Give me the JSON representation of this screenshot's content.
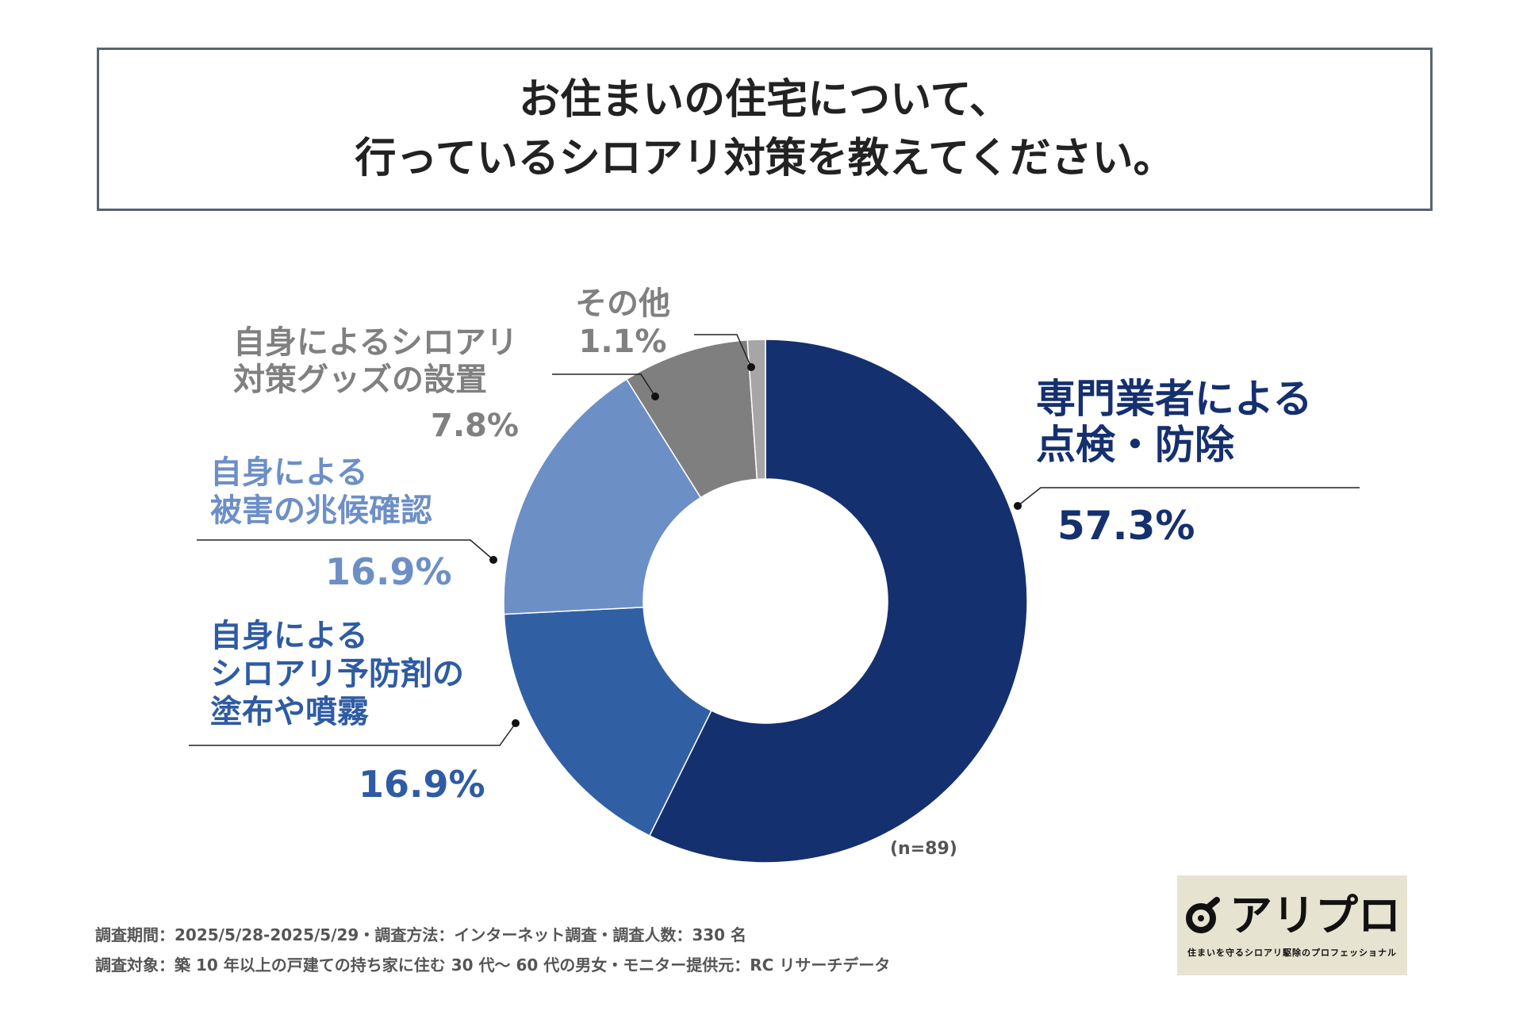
{
  "title": {
    "line1": "お住まいの住宅について、",
    "line2": "行っているシロアリ対策を教えてください。"
  },
  "chart_data": {
    "type": "pie",
    "variant": "donut",
    "sample_size": "(n=89)",
    "slices": [
      {
        "key": "professional",
        "label_lines": [
          "専門業者による",
          "点検・防除"
        ],
        "value": 57.3,
        "value_text": "57.3%",
        "color": "#15306f",
        "label_color": "#15306f"
      },
      {
        "key": "spray",
        "label_lines": [
          "自身による",
          "シロアリ予防剤の",
          "塗布や噴霧"
        ],
        "value": 16.9,
        "value_text": "16.9%",
        "color": "#305fa4",
        "label_color": "#2e5ba3"
      },
      {
        "key": "inspect",
        "label_lines": [
          "自身による",
          "被害の兆候確認"
        ],
        "value": 16.9,
        "value_text": "16.9%",
        "color": "#6c8fc6",
        "label_color": "#6d8fc6"
      },
      {
        "key": "goods",
        "label_lines": [
          "自身によるシロアリ",
          "対策グッズの設置"
        ],
        "value": 7.8,
        "value_text": "7.8%",
        "color": "#7f7f7f",
        "label_color": "#808080"
      },
      {
        "key": "other",
        "label_lines": [
          "その他"
        ],
        "value": 1.1,
        "value_text": "1.1%",
        "color": "#a6a6a6",
        "label_color": "#808080"
      }
    ]
  },
  "footer": {
    "line1": "調査期間：2025/5/28-2025/5/29・調査方法：インターネット調査・調査人数：330 名",
    "line2": "調査対象：築 10 年以上の戸建ての持ち家に住む 30 代〜 60 代の男女・モニター提供元：RC リサーチデータ"
  },
  "logo": {
    "name": "アリプロ",
    "tagline": "住まいを守るシロアリ駆除のプロフェッショナル"
  }
}
